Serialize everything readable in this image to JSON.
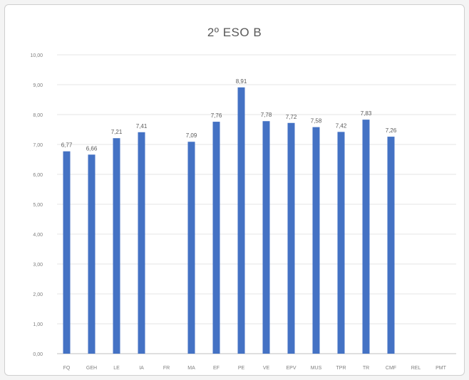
{
  "chart_data": {
    "type": "bar",
    "title": "2º ESO B",
    "xlabel": "",
    "ylabel": "",
    "ylim": [
      0,
      10
    ],
    "y_ticks": [
      "0,00",
      "1,00",
      "2,00",
      "3,00",
      "4,00",
      "5,00",
      "6,00",
      "7,00",
      "8,00",
      "9,00",
      "10,00"
    ],
    "categories": [
      "FQ",
      "GEH",
      "LE",
      "IA",
      "FR",
      "MA",
      "EF",
      "PE",
      "VE",
      "EPV",
      "MUS",
      "TPR",
      "TR",
      "CMF",
      "REL",
      "PMT"
    ],
    "values": [
      6.77,
      6.66,
      7.21,
      7.41,
      null,
      7.09,
      7.76,
      8.91,
      7.78,
      7.72,
      7.58,
      7.42,
      7.83,
      7.26,
      null,
      null
    ],
    "data_labels": [
      "6,77",
      "6,66",
      "7,21",
      "7,41",
      "",
      "7,09",
      "7,76",
      "8,91",
      "7,78",
      "7,72",
      "7,58",
      "7,42",
      "7,83",
      "7,26",
      "",
      ""
    ],
    "bar_color": "#4472c4",
    "grid": true,
    "legend": false
  }
}
